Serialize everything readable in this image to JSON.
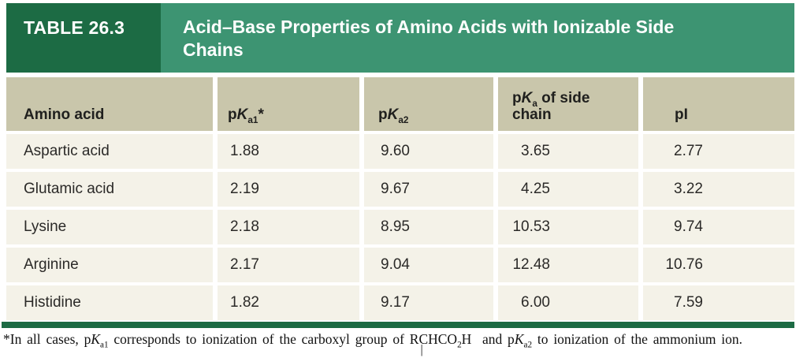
{
  "header": {
    "label": "TABLE 26.3",
    "title": "Acid–Base Properties of Amino Acids with Ionizable Side Chains"
  },
  "columns": {
    "amino_acid": "Amino acid",
    "pka1": {
      "p": "p",
      "k": "K",
      "sub": "a1",
      "star": "*"
    },
    "pka2": {
      "p": "p",
      "k": "K",
      "sub": "a2"
    },
    "pka_side": {
      "p": "p",
      "k": "K",
      "sub": "a",
      "rest": " of side",
      "line2": "chain"
    },
    "pi": "pI"
  },
  "rows": [
    {
      "name": "Aspartic acid",
      "pka1": "1.88",
      "pka2": "9.60",
      "side": "3.65",
      "pi": "2.77"
    },
    {
      "name": "Glutamic acid",
      "pka1": "2.19",
      "pka2": "9.67",
      "side": "4.25",
      "pi": "3.22"
    },
    {
      "name": "Lysine",
      "pka1": "2.18",
      "pka2": "8.95",
      "side": "10.53",
      "pi": "9.74"
    },
    {
      "name": "Arginine",
      "pka1": "2.17",
      "pka2": "9.04",
      "side": "12.48",
      "pi": "10.76"
    },
    {
      "name": "Histidine",
      "pka1": "1.82",
      "pka2": "9.17",
      "side": "6.00",
      "pi": "7.59"
    }
  ],
  "footnote": {
    "lead": "*In all cases, p",
    "k1": "K",
    "k1sub": "a1",
    "mid1": " corresponds to ionization of the carboxyl group of R",
    "bond_c": "C",
    "bond": "|",
    "mid2": "HCO",
    "formula_sub": "2",
    "mid3": "H  and p",
    "k2": "K",
    "k2sub": "a2",
    "tail": " to ionization of the ammonium ion."
  },
  "colors": {
    "dark_green": "#1c6b44",
    "light_green": "#3d9472",
    "header_tan": "#c9c6ab",
    "row_cream": "#f4f2e8"
  },
  "chart_data": {
    "type": "table",
    "title": "TABLE 26.3 Acid–Base Properties of Amino Acids with Ionizable Side Chains",
    "columns": [
      "Amino acid",
      "pKa1*",
      "pKa2",
      "pKa of side chain",
      "pI"
    ],
    "rows": [
      [
        "Aspartic acid",
        1.88,
        9.6,
        3.65,
        2.77
      ],
      [
        "Glutamic acid",
        2.19,
        9.67,
        4.25,
        3.22
      ],
      [
        "Lysine",
        2.18,
        8.95,
        10.53,
        9.74
      ],
      [
        "Arginine",
        2.17,
        9.04,
        12.48,
        10.76
      ],
      [
        "Histidine",
        1.82,
        9.17,
        6.0,
        7.59
      ]
    ],
    "footnote": "*In all cases, pKa1 corresponds to ionization of the carboxyl group of RCHCO2H and pKa2 to ionization of the ammonium ion."
  }
}
